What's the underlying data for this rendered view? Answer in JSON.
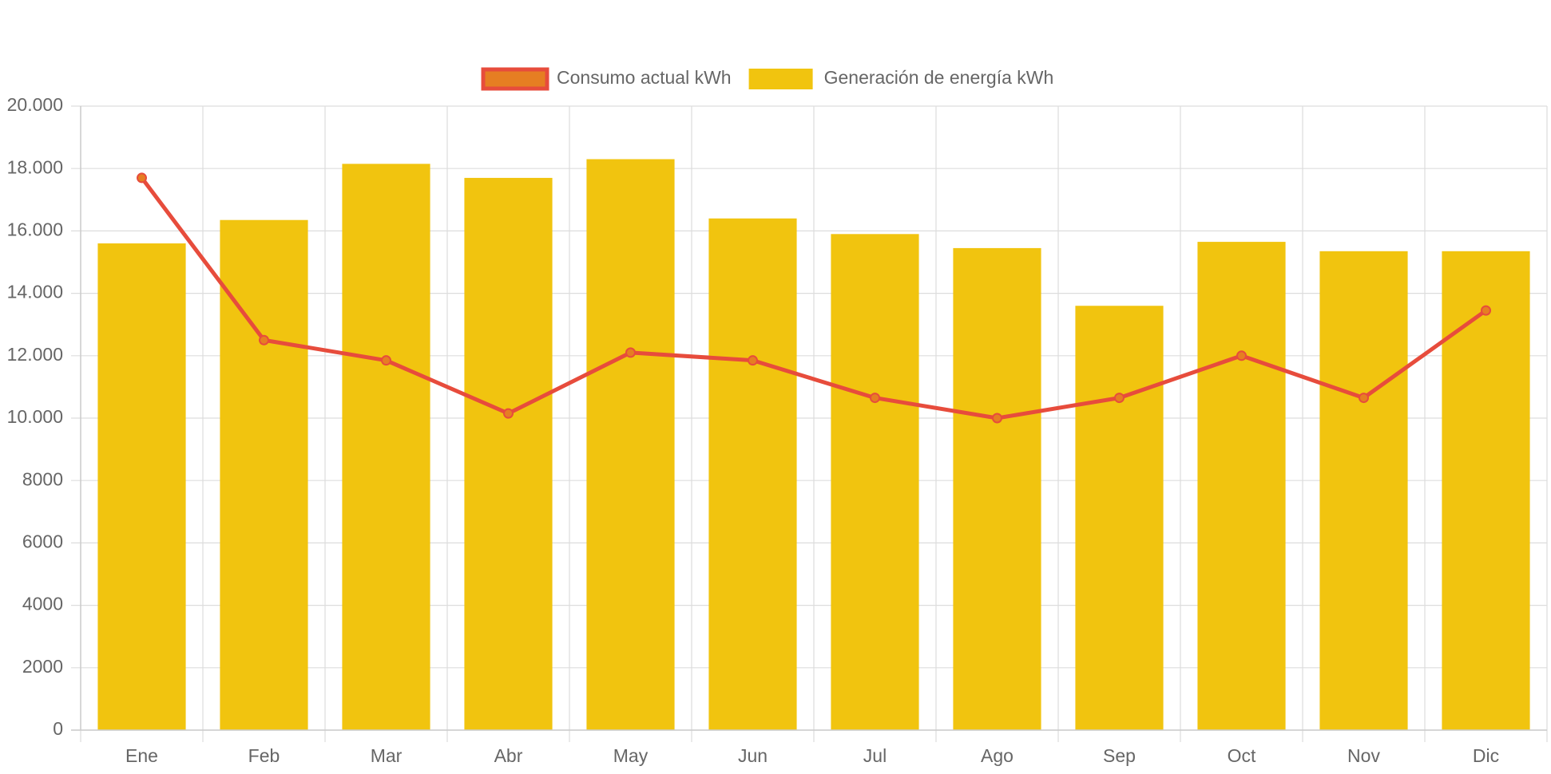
{
  "chart_data": {
    "type": "bar",
    "categories": [
      "Ene",
      "Feb",
      "Mar",
      "Abr",
      "May",
      "Jun",
      "Jul",
      "Ago",
      "Sep",
      "Oct",
      "Nov",
      "Dic"
    ],
    "series": [
      {
        "name": "Consumo actual kWh",
        "type": "line",
        "color": "#e74c3c",
        "point_color": "#e67e22",
        "values": [
          17700,
          12500,
          11850,
          10150,
          12100,
          11850,
          10650,
          10000,
          10650,
          12000,
          10650,
          13450
        ]
      },
      {
        "name": "Generación de energía kWh",
        "type": "bar",
        "color": "#f1c40f",
        "values": [
          15600,
          16350,
          18150,
          17700,
          18300,
          16400,
          15900,
          15450,
          13600,
          15650,
          15350,
          15350
        ]
      }
    ],
    "ylim": [
      0,
      20000
    ],
    "yticks": [
      0,
      2000,
      4000,
      6000,
      8000,
      {
        "value": 10000,
        "label": "10.000"
      },
      {
        "value": 12000,
        "label": "12.000"
      },
      {
        "value": 14000,
        "label": "14.000"
      },
      {
        "value": 16000,
        "label": "16.000"
      },
      {
        "value": 18000,
        "label": "18.000"
      },
      {
        "value": 20000,
        "label": "20.000"
      }
    ],
    "grid": true,
    "legend": "top"
  }
}
